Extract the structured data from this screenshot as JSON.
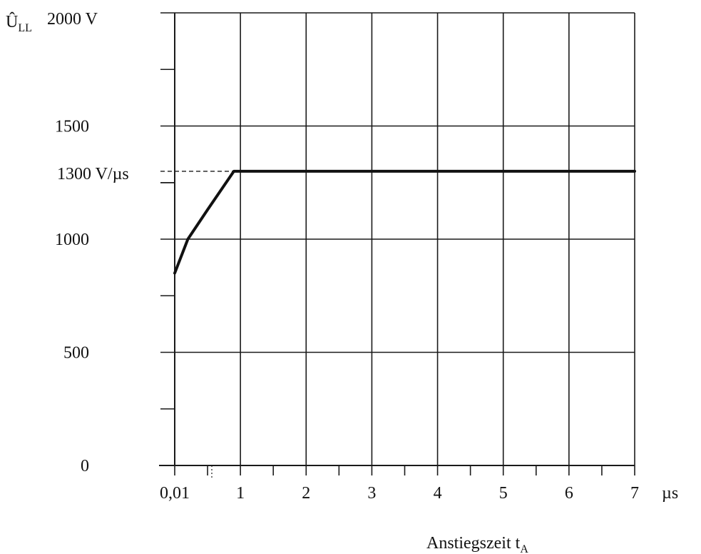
{
  "chart_data": {
    "type": "line",
    "title": "",
    "ylabel_main": "Û",
    "ylabel_sub": "LL",
    "ylabel_unit": "2000 V",
    "xlabel_main": "Anstiegszeit t",
    "xlabel_sub": "A",
    "x_unit": "µs",
    "rate_label": "1300 V/µs",
    "xlim": [
      0,
      7
    ],
    "ylim": [
      0,
      2000
    ],
    "x_ticks": [
      {
        "value": 0,
        "label": "0,01"
      },
      {
        "value": 1,
        "label": "1"
      },
      {
        "value": 2,
        "label": "2"
      },
      {
        "value": 3,
        "label": "3"
      },
      {
        "value": 4,
        "label": "4"
      },
      {
        "value": 5,
        "label": "5"
      },
      {
        "value": 6,
        "label": "6"
      },
      {
        "value": 7,
        "label": "7"
      }
    ],
    "x_minor_ticks": [
      0.5,
      1.5,
      2.5,
      3.5,
      4.5,
      5.5,
      6.5
    ],
    "y_ticks": [
      {
        "value": 0,
        "label": "0"
      },
      {
        "value": 500,
        "label": "500"
      },
      {
        "value": 1000,
        "label": "1000"
      },
      {
        "value": 1500,
        "label": "1500"
      }
    ],
    "y_grid": [
      500,
      1000,
      1500,
      2000
    ],
    "y_minor_ticks": [
      250,
      750,
      1250,
      1750
    ],
    "grid": true,
    "series": [
      {
        "x": [
          0,
          0.2,
          0.5,
          0.9,
          7
        ],
        "y": [
          850,
          1000,
          1130,
          1300,
          1300
        ]
      }
    ],
    "reference_line": {
      "y": 1300,
      "x_end": 0.9,
      "style": "dashed"
    }
  }
}
